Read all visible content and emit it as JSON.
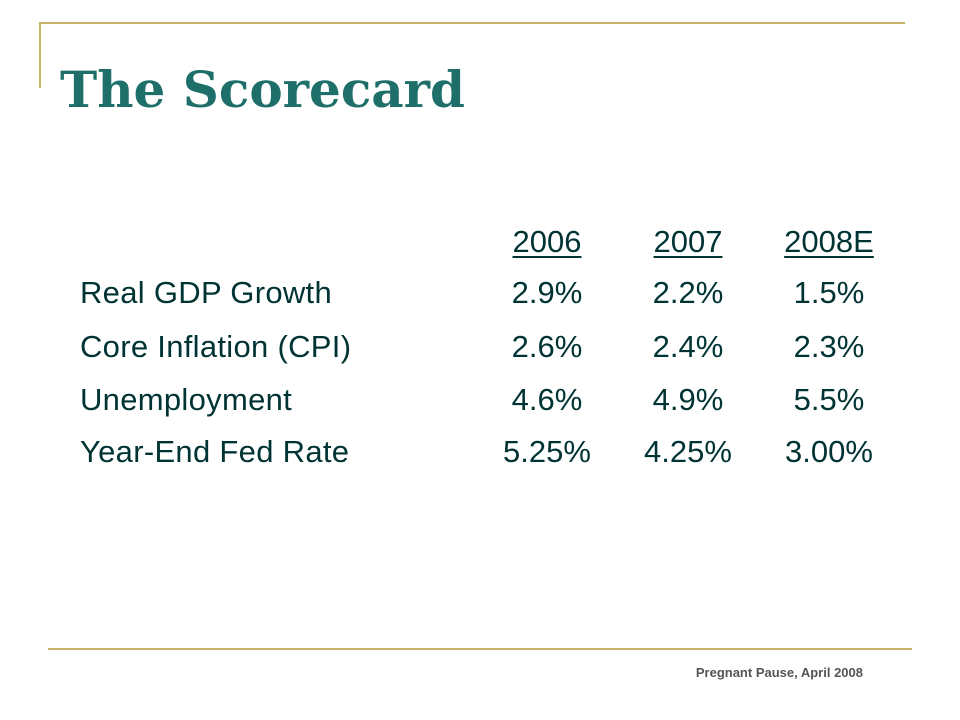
{
  "slide": {
    "title": "The Scorecard",
    "footer": "Pregnant Pause, April 2008"
  },
  "table": {
    "columns": [
      "2006",
      "2007",
      "2008E"
    ],
    "rows": [
      {
        "label": "Real GDP Growth",
        "values": [
          "2.9%",
          "2.2%",
          "1.5%"
        ]
      },
      {
        "label": "Core Inflation (CPI)",
        "values": [
          "2.6%",
          "2.4%",
          "2.3%"
        ]
      },
      {
        "label": "Unemployment",
        "values": [
          "4.6%",
          "4.9%",
          "5.5%"
        ]
      },
      {
        "label": "Year-End Fed Rate",
        "values": [
          "5.25%",
          "4.25%",
          "3.00%"
        ]
      }
    ]
  },
  "colors": {
    "title": "#1e6f6a",
    "body_text": "#003333",
    "accent_rule": "#c8b464",
    "footer_text": "#555555"
  }
}
